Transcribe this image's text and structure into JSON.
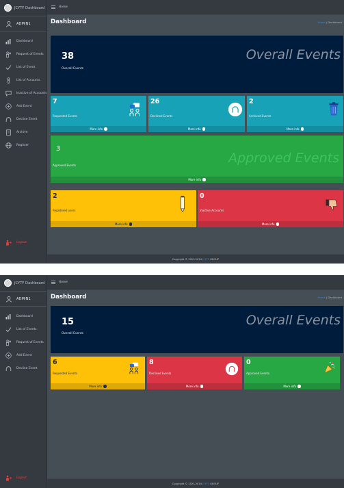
{
  "colors": {
    "navy": "#001c3d",
    "info": "#17a2b8",
    "green": "#28a745",
    "yellow": "#ffc107",
    "red": "#dc3545",
    "sidebar": "#343a40",
    "content": "#454d55",
    "logout": "#e8413c"
  },
  "admin_view": {
    "brand": "JCYTF Dashboard",
    "user": "ADMIN1",
    "topbar_home": "Home",
    "page_title": "Dashboard",
    "breadcrumb": {
      "home": "Home",
      "sep": " | ",
      "current": "Dashboard"
    },
    "nav": [
      {
        "label": "Dashboard",
        "icon": "chart-icon"
      },
      {
        "label": "Request of Events",
        "icon": "users-icon"
      },
      {
        "label": "List of Event",
        "icon": "check-icon"
      },
      {
        "label": "List of Accounts",
        "icon": "user-icon"
      },
      {
        "label": "Inactive of Accounts",
        "icon": "comment-icon"
      },
      {
        "label": "Add Event",
        "icon": "plus-circle-icon"
      },
      {
        "label": "Decline Event",
        "icon": "arc-icon"
      },
      {
        "label": "Archive",
        "icon": "archive-icon"
      },
      {
        "label": "Register",
        "icon": "globe-icon"
      }
    ],
    "logout": "Logout",
    "overall": {
      "value": "38",
      "label": "Overall Events",
      "title": "Overall Events"
    },
    "requested": {
      "value": "7",
      "label": "Requested Events",
      "more": "More info"
    },
    "declined": {
      "value": "26",
      "label": "Declined Events",
      "more": "More info"
    },
    "archived": {
      "value": "2",
      "label": "Archived Events",
      "more": "More info"
    },
    "approved": {
      "value": "3",
      "label": "Approved Events",
      "title": "Approved Events",
      "more": "More info"
    },
    "registered": {
      "value": "2",
      "label": "Registered users",
      "more": "More info"
    },
    "inactive": {
      "value": "0",
      "label": "Inactive Accounts",
      "more": "More info"
    },
    "footer": {
      "prefix": "Copyright © 2023-2024 ",
      "link": "JCYTF",
      "suffix": " GROUP"
    }
  },
  "user_view": {
    "brand": "JCYTF Dashboard",
    "user": "ADMIN1",
    "topbar_home": "Home",
    "page_title": "Dashboard",
    "breadcrumb": {
      "home": "Home",
      "sep": " | ",
      "current": "Dashboard"
    },
    "nav": [
      {
        "label": "Dashboard",
        "icon": "chart-icon"
      },
      {
        "label": "List of Events",
        "icon": "check-icon"
      },
      {
        "label": "Request of Events",
        "icon": "users-icon"
      },
      {
        "label": "Add Event",
        "icon": "plus-circle-icon"
      },
      {
        "label": "Decline Event",
        "icon": "arc-icon"
      }
    ],
    "logout": "Logout",
    "overall": {
      "value": "15",
      "label": "Overall Events",
      "title": "Overall Events"
    },
    "requested": {
      "value": "6",
      "label": "Requested Events",
      "more": "More info"
    },
    "declined": {
      "value": "8",
      "label": "Declined Events",
      "more": "More info"
    },
    "approved": {
      "value": "0",
      "label": "Approved Events",
      "more": "More info"
    },
    "footer": {
      "prefix": "Copyright © 2023-2024 ",
      "link": "JCYTF",
      "suffix": " GROUP"
    }
  }
}
